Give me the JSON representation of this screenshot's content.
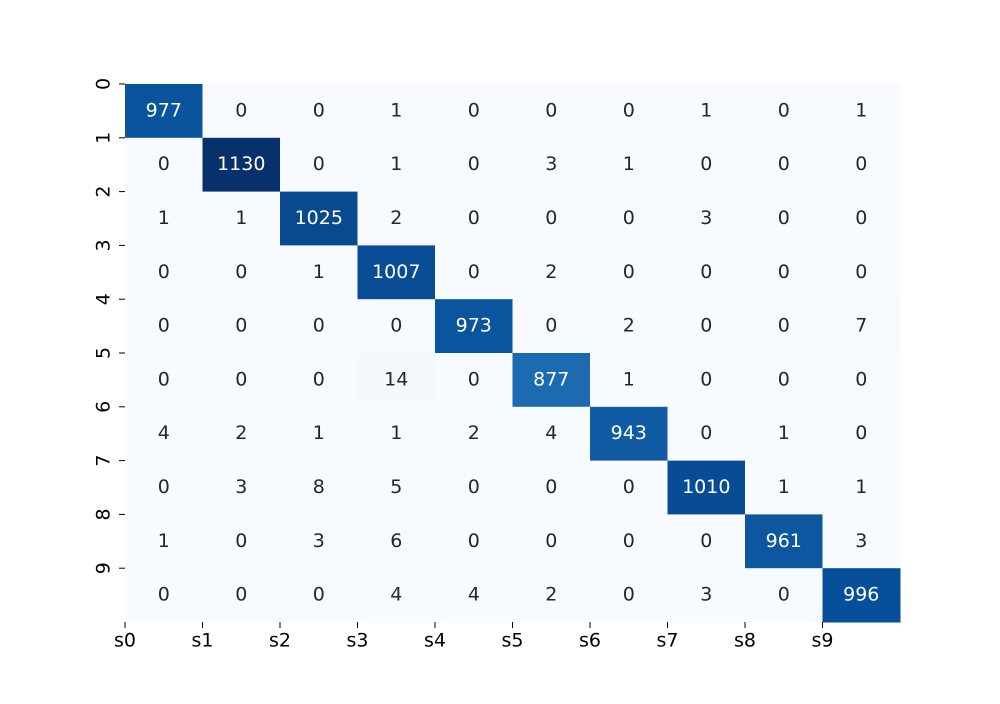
{
  "chart_data": {
    "type": "heatmap",
    "x_categories": [
      "s0",
      "s1",
      "s2",
      "s3",
      "s4",
      "s5",
      "s6",
      "s7",
      "s8",
      "s9"
    ],
    "y_categories": [
      "0",
      "1",
      "2",
      "3",
      "4",
      "5",
      "6",
      "7",
      "8",
      "9"
    ],
    "values": [
      [
        977,
        0,
        0,
        1,
        0,
        0,
        0,
        1,
        0,
        1
      ],
      [
        0,
        1130,
        0,
        1,
        0,
        3,
        1,
        0,
        0,
        0
      ],
      [
        1,
        1,
        1025,
        2,
        0,
        0,
        0,
        3,
        0,
        0
      ],
      [
        0,
        0,
        1,
        1007,
        0,
        2,
        0,
        0,
        0,
        0
      ],
      [
        0,
        0,
        0,
        0,
        973,
        0,
        2,
        0,
        0,
        7
      ],
      [
        0,
        0,
        0,
        14,
        0,
        877,
        1,
        0,
        0,
        0
      ],
      [
        4,
        2,
        1,
        1,
        2,
        4,
        943,
        0,
        1,
        0
      ],
      [
        0,
        3,
        8,
        5,
        0,
        0,
        0,
        1010,
        1,
        1
      ],
      [
        1,
        0,
        3,
        6,
        0,
        0,
        0,
        0,
        961,
        3
      ],
      [
        0,
        0,
        0,
        4,
        4,
        2,
        0,
        3,
        0,
        996
      ]
    ],
    "colormap": [
      "#f7fbff",
      "#deebf7",
      "#c6dbef",
      "#9ecae1",
      "#6baed6",
      "#4292c6",
      "#2171b5",
      "#08519c",
      "#08306b"
    ]
  }
}
